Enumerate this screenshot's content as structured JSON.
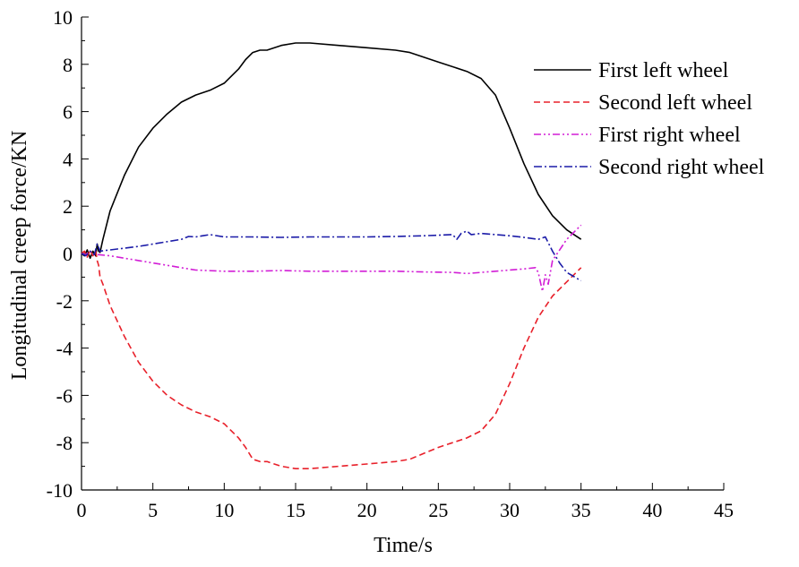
{
  "chart_data": {
    "type": "line",
    "title": "",
    "xlabel": "Time/s",
    "ylabel": "Longitudinal creep force/KN",
    "xlim": [
      0,
      45
    ],
    "ylim": [
      -10,
      10
    ],
    "x_ticks": [
      0,
      5,
      10,
      15,
      20,
      25,
      30,
      35,
      40,
      45
    ],
    "y_ticks": [
      -10,
      -8,
      -6,
      -4,
      -2,
      0,
      2,
      4,
      6,
      8,
      10
    ],
    "x_tick_labels": [
      "0",
      "5",
      "10",
      "15",
      "20",
      "25",
      "30",
      "35",
      "40",
      "45"
    ],
    "y_tick_labels": [
      "-10",
      "-8",
      "-6",
      "-4",
      "-2",
      "0",
      "2",
      "4",
      "6",
      "8",
      "10"
    ],
    "grid": false,
    "legend_position": "top-right",
    "series": [
      {
        "name": "First left wheel",
        "color": "#000000",
        "dash": "solid",
        "points": [
          [
            0,
            0
          ],
          [
            0.2,
            -0.1
          ],
          [
            0.4,
            0.15
          ],
          [
            0.6,
            -0.2
          ],
          [
            0.8,
            0.1
          ],
          [
            1.0,
            -0.1
          ],
          [
            1.1,
            0.4
          ],
          [
            1.2,
            0.1
          ],
          [
            1.3,
            0.05
          ],
          [
            1.5,
            0.6
          ],
          [
            2,
            1.8
          ],
          [
            3,
            3.3
          ],
          [
            4,
            4.5
          ],
          [
            5,
            5.3
          ],
          [
            6,
            5.9
          ],
          [
            7,
            6.4
          ],
          [
            8,
            6.7
          ],
          [
            9,
            6.9
          ],
          [
            10,
            7.2
          ],
          [
            11,
            7.8
          ],
          [
            11.5,
            8.2
          ],
          [
            12,
            8.5
          ],
          [
            12.5,
            8.6
          ],
          [
            13,
            8.6
          ],
          [
            14,
            8.8
          ],
          [
            15,
            8.9
          ],
          [
            16,
            8.9
          ],
          [
            18,
            8.8
          ],
          [
            20,
            8.7
          ],
          [
            22,
            8.6
          ],
          [
            23,
            8.5
          ],
          [
            25,
            8.1
          ],
          [
            27,
            7.7
          ],
          [
            28,
            7.4
          ],
          [
            29,
            6.7
          ],
          [
            30,
            5.3
          ],
          [
            31,
            3.8
          ],
          [
            32,
            2.5
          ],
          [
            33,
            1.6
          ],
          [
            34,
            1.0
          ],
          [
            35,
            0.6
          ]
        ]
      },
      {
        "name": "Second left wheel",
        "color": "#e8202a",
        "dash": "dashed",
        "points": [
          [
            0,
            0
          ],
          [
            0.2,
            0.1
          ],
          [
            0.4,
            -0.15
          ],
          [
            0.6,
            0.15
          ],
          [
            0.8,
            -0.1
          ],
          [
            1.0,
            0.1
          ],
          [
            1.1,
            -0.3
          ],
          [
            1.2,
            -0.5
          ],
          [
            1.3,
            -1.0
          ],
          [
            1.5,
            -1.3
          ],
          [
            2,
            -2.2
          ],
          [
            3,
            -3.5
          ],
          [
            4,
            -4.6
          ],
          [
            5,
            -5.4
          ],
          [
            6,
            -6.0
          ],
          [
            7,
            -6.4
          ],
          [
            8,
            -6.7
          ],
          [
            9,
            -6.9
          ],
          [
            10,
            -7.2
          ],
          [
            11,
            -7.8
          ],
          [
            11.5,
            -8.2
          ],
          [
            12,
            -8.7
          ],
          [
            12.5,
            -8.8
          ],
          [
            13,
            -8.8
          ],
          [
            14,
            -9.0
          ],
          [
            15,
            -9.1
          ],
          [
            16,
            -9.1
          ],
          [
            18,
            -9.0
          ],
          [
            20,
            -8.9
          ],
          [
            22,
            -8.8
          ],
          [
            23,
            -8.7
          ],
          [
            25,
            -8.2
          ],
          [
            27,
            -7.8
          ],
          [
            28,
            -7.5
          ],
          [
            29,
            -6.8
          ],
          [
            30,
            -5.5
          ],
          [
            31,
            -4.0
          ],
          [
            32,
            -2.7
          ],
          [
            33,
            -1.8
          ],
          [
            34,
            -1.2
          ],
          [
            35,
            -0.6
          ]
        ]
      },
      {
        "name": "First right wheel",
        "color": "#d21ed6",
        "dash": "dash-dot-dot",
        "points": [
          [
            0,
            0
          ],
          [
            0.3,
            -0.05
          ],
          [
            0.6,
            0.1
          ],
          [
            0.9,
            -0.05
          ],
          [
            1.2,
            -0.05
          ],
          [
            2,
            -0.1
          ],
          [
            4,
            -0.3
          ],
          [
            6,
            -0.5
          ],
          [
            8,
            -0.7
          ],
          [
            10,
            -0.75
          ],
          [
            12,
            -0.75
          ],
          [
            14,
            -0.72
          ],
          [
            16,
            -0.75
          ],
          [
            18,
            -0.75
          ],
          [
            20,
            -0.75
          ],
          [
            22,
            -0.75
          ],
          [
            24,
            -0.78
          ],
          [
            26,
            -0.8
          ],
          [
            27,
            -0.85
          ],
          [
            29,
            -0.75
          ],
          [
            31,
            -0.65
          ],
          [
            31.8,
            -0.6
          ],
          [
            32,
            -0.8
          ],
          [
            32.3,
            -1.6
          ],
          [
            32.5,
            -0.9
          ],
          [
            32.7,
            -1.3
          ],
          [
            33,
            -0.3
          ],
          [
            34,
            0.6
          ],
          [
            35,
            1.2
          ]
        ]
      },
      {
        "name": "Second right wheel",
        "color": "#1c1ca8",
        "dash": "dash-dot",
        "points": [
          [
            0,
            0
          ],
          [
            0.3,
            -0.1
          ],
          [
            0.6,
            0.1
          ],
          [
            0.9,
            -0.05
          ],
          [
            1.1,
            0.4
          ],
          [
            1.3,
            0.1
          ],
          [
            2,
            0.15
          ],
          [
            4,
            0.3
          ],
          [
            6,
            0.5
          ],
          [
            7,
            0.6
          ],
          [
            7.5,
            0.72
          ],
          [
            8,
            0.7
          ],
          [
            8.5,
            0.75
          ],
          [
            9,
            0.8
          ],
          [
            10,
            0.7
          ],
          [
            12,
            0.7
          ],
          [
            14,
            0.68
          ],
          [
            16,
            0.7
          ],
          [
            18,
            0.7
          ],
          [
            20,
            0.7
          ],
          [
            22,
            0.72
          ],
          [
            24,
            0.75
          ],
          [
            26,
            0.8
          ],
          [
            26.3,
            0.6
          ],
          [
            26.6,
            0.85
          ],
          [
            27,
            0.95
          ],
          [
            27.3,
            0.8
          ],
          [
            28,
            0.85
          ],
          [
            30,
            0.75
          ],
          [
            31,
            0.68
          ],
          [
            32,
            0.6
          ],
          [
            32.5,
            0.7
          ],
          [
            33,
            0.1
          ],
          [
            33.5,
            -0.4
          ],
          [
            34,
            -0.8
          ],
          [
            35,
            -1.15
          ]
        ]
      }
    ]
  }
}
